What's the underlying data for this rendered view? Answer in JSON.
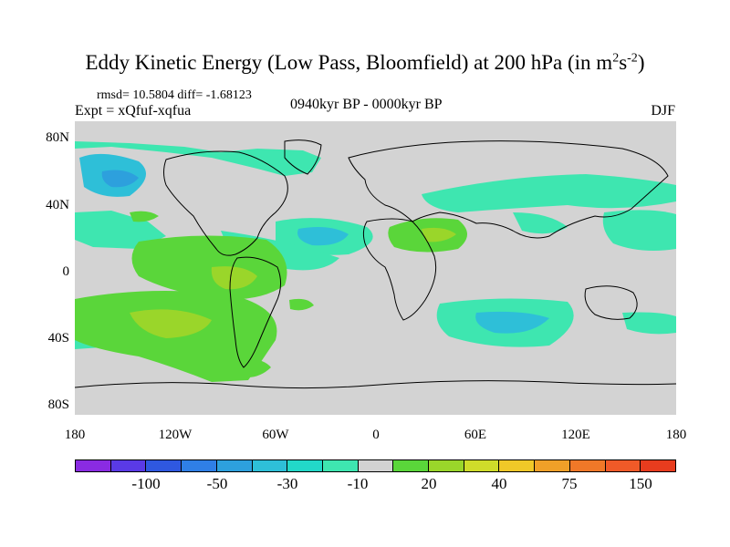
{
  "title": {
    "main": "Eddy Kinetic Energy (Low Pass, Bloomfield) at 200 hPa (in m",
    "sup1": "2",
    "mid": "s",
    "sup2": "-2",
    "end": ")"
  },
  "stats": "rmsd= 10.5804 diff= -1.68123",
  "expt": "Expt = xQfuf-xqfua",
  "period": "0940kyr BP - 0000kyr BP",
  "season": "DJF",
  "lat_labels": [
    "80N",
    "40N",
    "0",
    "40S",
    "80S"
  ],
  "lon_labels": [
    "180",
    "120W",
    "60W",
    "0",
    "60E",
    "120E",
    "180"
  ],
  "colorbar": {
    "colors": [
      "#8a2be2",
      "#5a3ae6",
      "#2f58e0",
      "#2f7fe6",
      "#2da0dd",
      "#2ebfd8",
      "#22d8c8",
      "#3ee6b0",
      "#d2d2d2",
      "#5ad63a",
      "#9ad62a",
      "#cfdc2a",
      "#f0c828",
      "#f0a028",
      "#f07828",
      "#f05a28",
      "#e83c1e"
    ],
    "labels": [
      "-100",
      "-50",
      "-30",
      "-10",
      "20",
      "40",
      "75",
      "150"
    ]
  },
  "map_colors": {
    "ocean": "#d3d3d3",
    "neg_light": "#3ee6b0",
    "neg_mid": "#2ebfd8",
    "neg_strong": "#2da0dd",
    "pos_light": "#5ad63a",
    "pos_mid": "#9ad62a",
    "pos_strong": "#cfdc2a"
  }
}
